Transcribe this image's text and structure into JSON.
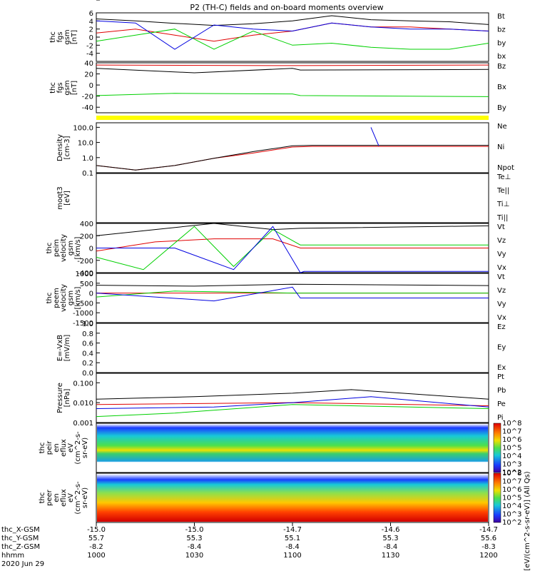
{
  "title": "P2 (TH-C) fields and on-board moments overview",
  "chart_data": [
    {
      "panel": "fgs",
      "type": "line",
      "ylabel": [
        "thc",
        "fgs",
        "gsm",
        "[nT]"
      ],
      "ylim": [
        -6,
        6
      ],
      "yticks": [
        "-4",
        "-2",
        "0",
        "2",
        "4",
        "6"
      ],
      "series": [
        {
          "name": "Bt",
          "color": "#000000",
          "x": [
            0,
            0.1,
            0.2,
            0.3,
            0.4,
            0.5,
            0.6,
            0.7,
            0.8,
            0.9,
            1.0
          ],
          "y": [
            4.5,
            4.0,
            3.4,
            2.9,
            3.3,
            4.0,
            5.3,
            4.3,
            4.0,
            3.8,
            3.1
          ]
        },
        {
          "name": "bz",
          "color": "#e00000",
          "x": [
            0,
            0.1,
            0.2,
            0.3,
            0.4,
            0.5,
            0.6,
            0.7,
            0.8,
            0.9,
            1.0
          ],
          "y": [
            1.0,
            2.0,
            0.5,
            -1.0,
            0.5,
            1.5,
            3.5,
            2.5,
            2.5,
            2.0,
            1.5
          ]
        },
        {
          "name": "by",
          "color": "#00d000",
          "x": [
            0,
            0.1,
            0.2,
            0.3,
            0.4,
            0.5,
            0.6,
            0.7,
            0.8,
            0.9,
            1.0
          ],
          "y": [
            -1.0,
            0.5,
            2.0,
            -3.0,
            1.5,
            -2.0,
            -1.5,
            -2.5,
            -3.0,
            -3.0,
            -1.5
          ]
        },
        {
          "name": "bx",
          "color": "#0000e0",
          "x": [
            0,
            0.1,
            0.2,
            0.3,
            0.4,
            0.5,
            0.6,
            0.7,
            0.8,
            0.9,
            1.0
          ],
          "y": [
            4.0,
            3.5,
            -3.0,
            3.0,
            2.0,
            1.5,
            3.5,
            2.5,
            2.0,
            2.0,
            1.5
          ]
        }
      ]
    },
    {
      "panel": "fgs-wide",
      "type": "line",
      "ylabel": [
        "thc",
        "fgs",
        "gsm",
        "[nT]"
      ],
      "ylim": [
        -50,
        40
      ],
      "yticks": [
        "-40",
        "-20",
        "0",
        "20",
        "40"
      ],
      "series": [
        {
          "name": "Bz",
          "color": "#e00000",
          "x": [
            0,
            0.5,
            1.0
          ],
          "y": [
            36,
            35,
            36
          ]
        },
        {
          "name": "Bx",
          "color": "#000000",
          "x": [
            0,
            0.25,
            0.5,
            0.52,
            1.0
          ],
          "y": [
            30,
            22,
            30,
            27,
            28
          ]
        },
        {
          "name": "By",
          "color": "#00d000",
          "x": [
            0,
            0.2,
            0.5,
            0.52,
            1.0
          ],
          "y": [
            -19,
            -15,
            -16,
            -19,
            -21
          ]
        }
      ]
    },
    {
      "panel": "density",
      "type": "line",
      "ylabel": [
        "Density",
        "[cm-3]"
      ],
      "ylog": true,
      "ylim": [
        0.1,
        200
      ],
      "yticks": [
        "0.1",
        "1.0",
        "10.0",
        "100.0"
      ],
      "series": [
        {
          "name": "Ne",
          "color": "#e00000",
          "x": [
            0,
            0.1,
            0.2,
            0.3,
            0.4,
            0.5,
            0.55,
            1.0
          ],
          "y": [
            0.3,
            0.15,
            0.3,
            0.9,
            2.0,
            5.0,
            5.5,
            5.5
          ]
        },
        {
          "name": "Ni",
          "color": "#000000",
          "x": [
            0,
            0.1,
            0.2,
            0.3,
            0.4,
            0.5,
            0.55,
            1.0
          ],
          "y": [
            0.3,
            0.15,
            0.3,
            0.9,
            2.5,
            6.0,
            6.5,
            6.5
          ]
        },
        {
          "name": "Npot",
          "color": "#0000e0",
          "x": [
            0.7,
            0.72
          ],
          "y": [
            100,
            6
          ]
        }
      ]
    },
    {
      "panel": "temperature",
      "type": "line",
      "ylabel": [
        "moqt3",
        "[eV]"
      ],
      "series_names": [
        "Te⊥",
        "Te||",
        "Ti⊥",
        "Ti||"
      ]
    },
    {
      "panel": "peim-velocity",
      "type": "line",
      "ylabel": [
        "thc",
        "peim",
        "velocity",
        "gsm",
        "[km/s]"
      ],
      "ylim": [
        -400,
        400
      ],
      "yticks": [
        "-400",
        "-200",
        "0",
        "200",
        "400"
      ],
      "series": [
        {
          "name": "Vt",
          "color": "#000000",
          "x": [
            0,
            0.15,
            0.3,
            0.45,
            0.52,
            1.0
          ],
          "y": [
            200,
            300,
            400,
            300,
            320,
            360
          ]
        },
        {
          "name": "Vz",
          "color": "#e00000",
          "x": [
            0,
            0.15,
            0.3,
            0.45,
            0.52,
            1.0
          ],
          "y": [
            -50,
            100,
            150,
            150,
            0,
            0
          ]
        },
        {
          "name": "Vy",
          "color": "#00d000",
          "x": [
            0,
            0.12,
            0.25,
            0.35,
            0.45,
            0.52,
            1.0
          ],
          "y": [
            -150,
            -350,
            350,
            -300,
            300,
            50,
            50
          ]
        },
        {
          "name": "Vx",
          "color": "#0000e0",
          "x": [
            0,
            0.2,
            0.35,
            0.45,
            0.52,
            0.53,
            1.0
          ],
          "y": [
            0,
            0,
            -350,
            350,
            -400,
            -380,
            -380
          ]
        }
      ]
    },
    {
      "panel": "peem-velocity",
      "type": "line",
      "ylabel": [
        "thc",
        "peem",
        "velocity",
        "gsm",
        "[km/s]"
      ],
      "ylim": [
        -1500,
        1000
      ],
      "yticks": [
        "-1500",
        "-1000",
        "-500",
        "0",
        "500",
        "1000"
      ],
      "series": [
        {
          "name": "Vt",
          "color": "#000000",
          "x": [
            0,
            0.25,
            0.5,
            1.0
          ],
          "y": [
            400,
            350,
            450,
            380
          ]
        },
        {
          "name": "Vz",
          "color": "#e00000",
          "x": [
            0,
            1.0
          ],
          "y": [
            0,
            0
          ]
        },
        {
          "name": "Vy",
          "color": "#00d000",
          "x": [
            0,
            0.2,
            0.5,
            1.0
          ],
          "y": [
            -200,
            100,
            0,
            0
          ]
        },
        {
          "name": "Vx",
          "color": "#0000e0",
          "x": [
            0,
            0.3,
            0.5,
            0.52,
            1.0
          ],
          "y": [
            0,
            -400,
            300,
            -250,
            -250
          ]
        }
      ]
    },
    {
      "panel": "efield",
      "type": "line",
      "ylabel": [
        "E=-VxB",
        "[mV/m]"
      ],
      "ylim": [
        0,
        1
      ],
      "yticks": [
        "0.0",
        "0.2",
        "0.4",
        "0.6",
        "0.8",
        "1.0"
      ],
      "series_names": [
        "Ez",
        "Ey",
        "Ex"
      ]
    },
    {
      "panel": "pressure",
      "type": "line",
      "ylabel": [
        "Pressure",
        "[nPa]"
      ],
      "ylog": true,
      "ylim": [
        0.001,
        0.3
      ],
      "yticks": [
        "0.001",
        "0.010",
        "0.100"
      ],
      "series": [
        {
          "name": "Pt",
          "color": "#000000",
          "x": [
            0,
            0.25,
            0.5,
            0.65,
            1.0
          ],
          "y": [
            0.015,
            0.02,
            0.03,
            0.045,
            0.015
          ]
        },
        {
          "name": "Pb",
          "color": "#e00000",
          "x": [
            0,
            0.5,
            1.0
          ],
          "y": [
            0.008,
            0.01,
            0.007
          ]
        },
        {
          "name": "Pe",
          "color": "#00d000",
          "x": [
            0,
            0.2,
            0.5,
            1.0
          ],
          "y": [
            0.002,
            0.003,
            0.008,
            0.005
          ]
        },
        {
          "name": "Pi",
          "color": "#0000e0",
          "x": [
            0,
            0.3,
            0.5,
            0.7,
            1.0
          ],
          "y": [
            0.005,
            0.006,
            0.01,
            0.02,
            0.006
          ]
        }
      ]
    },
    {
      "panel": "peir-spectrogram",
      "type": "heatmap",
      "ylabel": [
        "thc",
        "peir",
        "en",
        "eflux",
        "eV",
        "(cm^2-s-",
        "sr-eV)"
      ],
      "ylog": true,
      "yticks": [
        "1",
        "10",
        "100",
        "1000",
        "10000"
      ]
    },
    {
      "panel": "peer-spectrogram",
      "type": "heatmap",
      "ylabel": [
        "thc",
        "peer",
        "en",
        "eflux",
        "eV",
        "(cm^2-s-",
        "sr-eV)"
      ],
      "ylog": true,
      "yticks": [
        "10",
        "100",
        "1000",
        "10000"
      ]
    }
  ],
  "colorbar": {
    "ticks": [
      "10^2",
      "10^3",
      "10^4",
      "10^5",
      "10^6",
      "10^7",
      "10^8"
    ],
    "label": "[eV/(cm^2-s-sr-eV)] (All Qs)"
  },
  "xaxis": {
    "rows": [
      {
        "label": "thc_X-GSM",
        "values": [
          "-15.0",
          "-15.0",
          "-14.7",
          "-14.6",
          "-14.7"
        ]
      },
      {
        "label": "thc_Y-GSM",
        "values": [
          "55.7",
          "55.3",
          "55.1",
          "55.3",
          "55.6"
        ]
      },
      {
        "label": "thc_Z-GSM",
        "values": [
          "-8.2",
          "-8.4",
          "-8.4",
          "-8.4",
          "-8.3"
        ]
      },
      {
        "label": "hhmm",
        "values": [
          "1000",
          "1030",
          "1100",
          "1130",
          "1200"
        ]
      }
    ],
    "date": "2020 Jun 29"
  }
}
